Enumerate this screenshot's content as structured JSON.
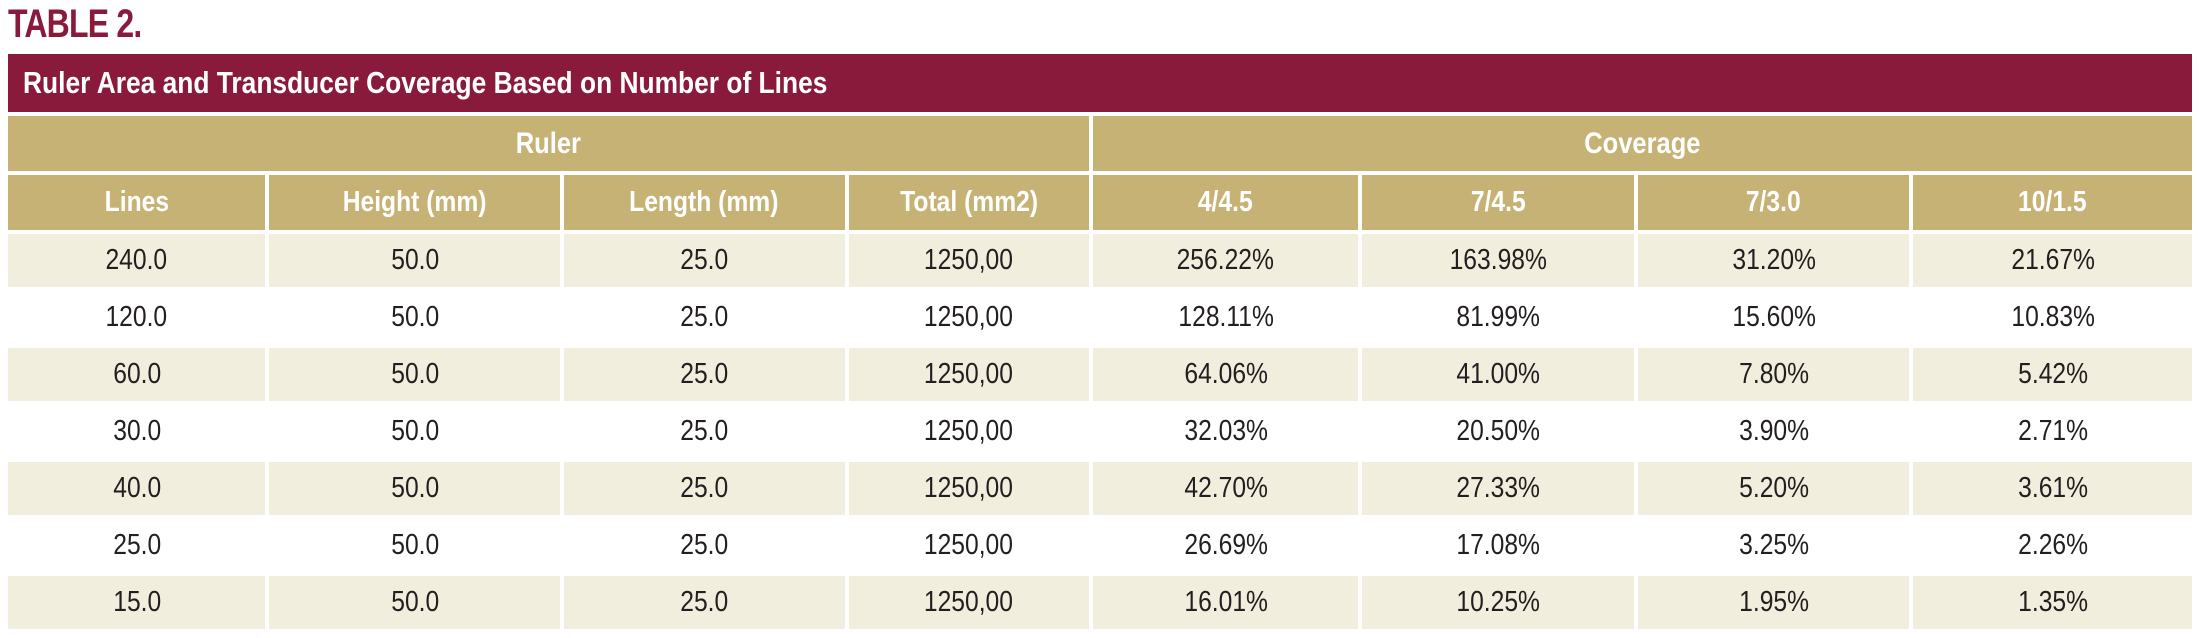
{
  "table_label": "TABLE 2.",
  "table": {
    "title": "Ruler Area and Transducer Coverage Based on Number of Lines",
    "groups": [
      {
        "label": "Ruler",
        "span": 4
      },
      {
        "label": "Coverage",
        "span": 4
      }
    ],
    "columns": [
      "Lines",
      "Height (mm)",
      "Length (mm)",
      "Total (mm2)",
      "4/4.5",
      "7/4.5",
      "7/3.0",
      "10/1.5"
    ],
    "rows": [
      {
        "cells": [
          "240.0",
          "50.0",
          "25.0",
          "1250,00",
          "256.22%",
          "163.98%",
          "31.20%",
          "21.67%"
        ]
      },
      {
        "cells": [
          "120.0",
          "50.0",
          "25.0",
          "1250,00",
          "128.11%",
          "81.99%",
          "15.60%",
          "10.83%"
        ]
      },
      {
        "cells": [
          "60.0",
          "50.0",
          "25.0",
          "1250,00",
          "64.06%",
          "41.00%",
          "7.80%",
          "5.42%"
        ]
      },
      {
        "cells": [
          "30.0",
          "50.0",
          "25.0",
          "1250,00",
          "32.03%",
          "20.50%",
          "3.90%",
          "2.71%"
        ]
      },
      {
        "cells": [
          "40.0",
          "50.0",
          "25.0",
          "1250,00",
          "42.70%",
          "27.33%",
          "5.20%",
          "3.61%"
        ]
      },
      {
        "cells": [
          "25.0",
          "50.0",
          "25.0",
          "1250,00",
          "26.69%",
          "17.08%",
          "3.25%",
          "2.26%"
        ]
      },
      {
        "cells": [
          "15.0",
          "50.0",
          "25.0",
          "1250,00",
          "16.01%",
          "10.25%",
          "1.95%",
          "1.35%"
        ]
      }
    ]
  },
  "colors": {
    "maroon": "#8A1A3B",
    "tan": "#C7B276",
    "cream_row": "#F1EEDE",
    "white_row": "#FFFFFF",
    "header_text": "#FFFFFF",
    "body_text": "#231F20"
  },
  "chart_data": {
    "type": "table",
    "title": "Ruler Area and Transducer Coverage Based on Number of Lines",
    "column_groups": [
      {
        "label": "Ruler",
        "columns": [
          "Lines",
          "Height (mm)",
          "Length (mm)",
          "Total (mm2)"
        ]
      },
      {
        "label": "Coverage",
        "columns": [
          "4/4.5",
          "7/4.5",
          "7/3.0",
          "10/1.5"
        ]
      }
    ],
    "columns": [
      "Lines",
      "Height (mm)",
      "Length (mm)",
      "Total (mm2)",
      "4/4.5",
      "7/4.5",
      "7/3.0",
      "10/1.5"
    ],
    "rows": [
      [
        "240.0",
        "50.0",
        "25.0",
        "1250,00",
        "256.22%",
        "163.98%",
        "31.20%",
        "21.67%"
      ],
      [
        "120.0",
        "50.0",
        "25.0",
        "1250,00",
        "128.11%",
        "81.99%",
        "15.60%",
        "10.83%"
      ],
      [
        "60.0",
        "50.0",
        "25.0",
        "1250,00",
        "64.06%",
        "41.00%",
        "7.80%",
        "5.42%"
      ],
      [
        "30.0",
        "50.0",
        "25.0",
        "1250,00",
        "32.03%",
        "20.50%",
        "3.90%",
        "2.71%"
      ],
      [
        "40.0",
        "50.0",
        "25.0",
        "1250,00",
        "42.70%",
        "27.33%",
        "5.20%",
        "3.61%"
      ],
      [
        "25.0",
        "50.0",
        "25.0",
        "1250,00",
        "26.69%",
        "17.08%",
        "3.25%",
        "2.26%"
      ],
      [
        "15.0",
        "50.0",
        "25.0",
        "1250,00",
        "16.01%",
        "10.25%",
        "1.95%",
        "1.35%"
      ]
    ]
  }
}
